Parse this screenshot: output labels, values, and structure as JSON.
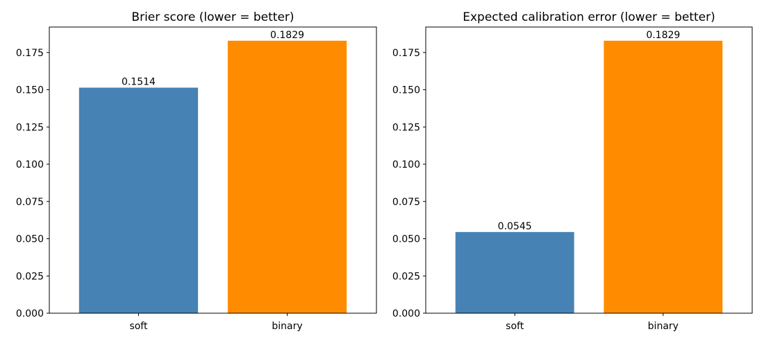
{
  "chart_data": [
    {
      "type": "bar",
      "title": "Brier score (lower = better)",
      "xlabel": "",
      "ylabel": "",
      "categories": [
        "soft",
        "binary"
      ],
      "values": [
        0.1514,
        0.1829
      ],
      "value_labels": [
        "0.1514",
        "0.1829"
      ],
      "colors": [
        "#4682b4",
        "#ff8c00"
      ],
      "ylim": [
        0,
        0.1921
      ],
      "yticks": [
        0.0,
        0.025,
        0.05,
        0.075,
        0.1,
        0.125,
        0.15,
        0.175
      ],
      "ytick_labels": [
        "0.000",
        "0.025",
        "0.050",
        "0.075",
        "0.100",
        "0.125",
        "0.150",
        "0.175"
      ],
      "grid": false,
      "legend": "none"
    },
    {
      "type": "bar",
      "title": "Expected calibration error (lower = better)",
      "xlabel": "",
      "ylabel": "",
      "categories": [
        "soft",
        "binary"
      ],
      "values": [
        0.0545,
        0.1829
      ],
      "value_labels": [
        "0.0545",
        "0.1829"
      ],
      "colors": [
        "#4682b4",
        "#ff8c00"
      ],
      "ylim": [
        0,
        0.1921
      ],
      "yticks": [
        0.0,
        0.025,
        0.05,
        0.075,
        0.1,
        0.125,
        0.15,
        0.175
      ],
      "ytick_labels": [
        "0.000",
        "0.025",
        "0.050",
        "0.075",
        "0.100",
        "0.125",
        "0.150",
        "0.175"
      ],
      "grid": false,
      "legend": "none"
    }
  ]
}
